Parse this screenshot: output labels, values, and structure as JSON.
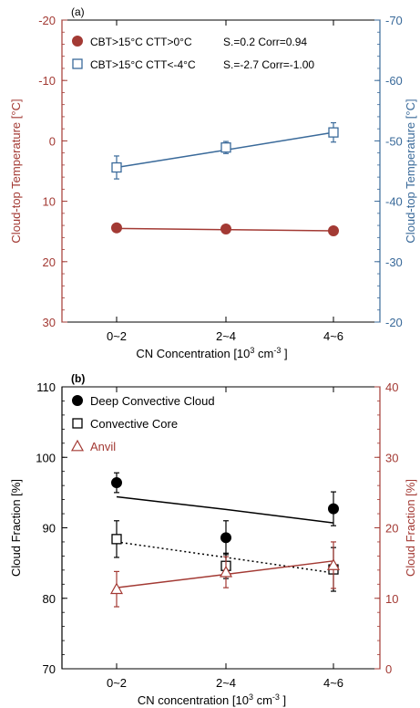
{
  "colors": {
    "red": "#a33a34",
    "blue": "#3a6a9a",
    "black": "#000000"
  },
  "chart_data": [
    {
      "type": "line",
      "panel_label": "(a)",
      "categories": [
        "0~2",
        "2~4",
        "4~6"
      ],
      "xlabel": "CN Concentration [10",
      "xlabel_sup": "3",
      "xlabel_mid": " cm",
      "xlabel_sup2": "-3",
      "xlabel_end": " ]",
      "ylabel_left": "Cloud-top Temperature [°C]",
      "ylabel_right": "Cloud-top Temperature [°C]",
      "ylim_left": [
        30,
        -20
      ],
      "ylim_left_ticks": [
        "-20",
        "-10",
        "0",
        "10",
        "20",
        "30"
      ],
      "ylim_right": [
        -20,
        -70
      ],
      "ylim_right_ticks": [
        "-70",
        "-60",
        "-50",
        "-40",
        "-30",
        "-20"
      ],
      "legend_placement": "top-left",
      "series": [
        {
          "name": "CBT>15°C CTT>0°C",
          "stats": "S.=0.2 Corr=0.94",
          "axis": "left",
          "marker": "filled-circle",
          "color": "#a33a34",
          "values": [
            14.4,
            14.6,
            14.9
          ],
          "errors": [
            0,
            0,
            0
          ],
          "fit": [
            14.5,
            14.7,
            14.9
          ]
        },
        {
          "name": "CBT>15°C CTT<-4°C",
          "stats": "S.=-2.7 Corr=-1.00",
          "axis": "right",
          "marker": "open-square",
          "color": "#3a6a9a",
          "values": [
            -45.6,
            -48.9,
            -51.4
          ],
          "errors": [
            1.9,
            1.0,
            1.6
          ],
          "fit": [
            -45.6,
            -48.5,
            -51.4
          ]
        }
      ]
    },
    {
      "type": "line",
      "panel_label": "(b)",
      "categories": [
        "0~2",
        "2~4",
        "4~6"
      ],
      "xlabel": "CN concentration [10",
      "xlabel_sup": "3",
      "xlabel_mid": " cm",
      "xlabel_sup2": "-3",
      "xlabel_end": " ]",
      "ylabel_left": "Cloud Fraction [%]",
      "ylabel_right": "Cloud Fraction [%]",
      "ylim_left": [
        70,
        110
      ],
      "ylim_left_ticks": [
        "70",
        "80",
        "90",
        "100",
        "110"
      ],
      "ylim_right": [
        0,
        40
      ],
      "ylim_right_ticks": [
        "0",
        "10",
        "20",
        "30",
        "40"
      ],
      "legend_placement": "top-left",
      "series": [
        {
          "name": "Deep Convective Cloud",
          "axis": "left",
          "marker": "filled-circle",
          "color": "#000000",
          "values": [
            96.4,
            88.6,
            92.7
          ],
          "errors": [
            1.4,
            2.4,
            2.4
          ],
          "fit": [
            94.4,
            92.6,
            90.7
          ],
          "fit_style": "solid"
        },
        {
          "name": "Convective Core",
          "axis": "left",
          "marker": "open-square",
          "color": "#000000",
          "values": [
            88.4,
            84.6,
            84.1
          ],
          "errors": [
            2.6,
            1.8,
            3.1
          ],
          "fit": [
            88.0,
            85.8,
            83.6
          ],
          "fit_style": "dotted"
        },
        {
          "name": "Anvil",
          "axis": "right",
          "marker": "open-triangle",
          "color": "#a33a34",
          "values": [
            11.3,
            13.7,
            14.7
          ],
          "errors": [
            2.5,
            2.2,
            3.3
          ],
          "fit": [
            11.5,
            13.4,
            15.3
          ],
          "fit_style": "solid"
        }
      ]
    }
  ]
}
